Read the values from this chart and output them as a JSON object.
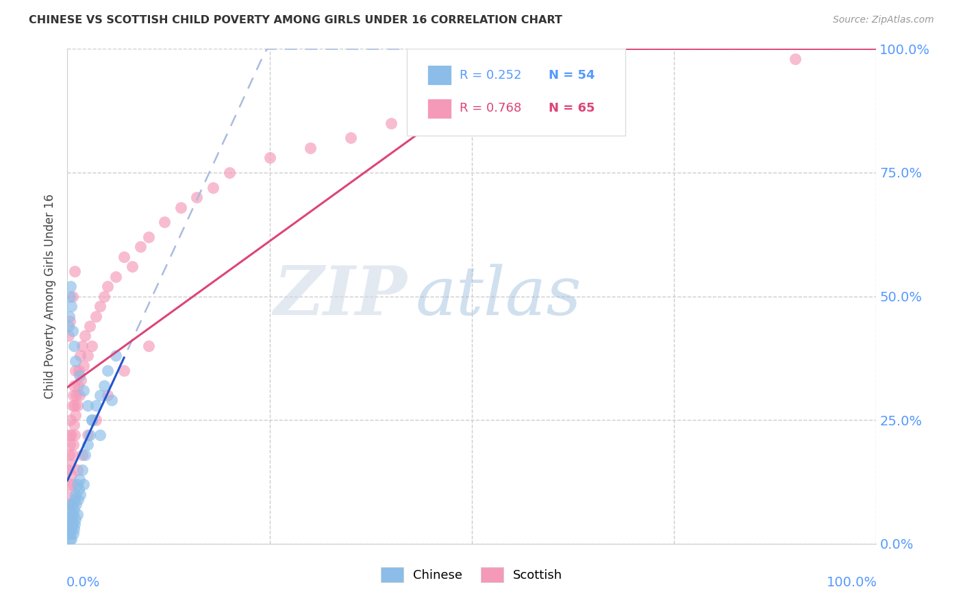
{
  "title": "CHINESE VS SCOTTISH CHILD POVERTY AMONG GIRLS UNDER 16 CORRELATION CHART",
  "source": "Source: ZipAtlas.com",
  "ylabel": "Child Poverty Among Girls Under 16",
  "ytick_values": [
    0.0,
    0.25,
    0.5,
    0.75,
    1.0
  ],
  "ytick_labels": [
    "0.0%",
    "25.0%",
    "50.0%",
    "75.0%",
    "100.0%"
  ],
  "chinese_R": 0.252,
  "chinese_N": 54,
  "scottish_R": 0.768,
  "scottish_N": 65,
  "chinese_color": "#8bbde8",
  "scottish_color": "#f599b8",
  "chinese_line_color": "#2255cc",
  "scottish_line_color": "#dd4477",
  "chinese_dash_color": "#aabbdd",
  "watermark_zip": "#c8d8e8",
  "watermark_atlas": "#aaccee",
  "chinese_x": [
    0.001,
    0.002,
    0.002,
    0.003,
    0.003,
    0.003,
    0.004,
    0.004,
    0.004,
    0.005,
    0.005,
    0.005,
    0.006,
    0.006,
    0.007,
    0.007,
    0.008,
    0.008,
    0.009,
    0.009,
    0.01,
    0.01,
    0.011,
    0.012,
    0.012,
    0.013,
    0.014,
    0.015,
    0.016,
    0.018,
    0.02,
    0.022,
    0.025,
    0.028,
    0.03,
    0.035,
    0.04,
    0.045,
    0.05,
    0.06,
    0.001,
    0.002,
    0.003,
    0.004,
    0.005,
    0.006,
    0.008,
    0.01,
    0.015,
    0.02,
    0.025,
    0.03,
    0.04,
    0.055
  ],
  "chinese_y": [
    0.02,
    0.03,
    0.05,
    0.01,
    0.04,
    0.07,
    0.02,
    0.05,
    0.08,
    0.01,
    0.03,
    0.06,
    0.04,
    0.08,
    0.02,
    0.06,
    0.03,
    0.07,
    0.04,
    0.09,
    0.05,
    0.1,
    0.08,
    0.06,
    0.12,
    0.09,
    0.11,
    0.13,
    0.1,
    0.15,
    0.12,
    0.18,
    0.2,
    0.22,
    0.25,
    0.28,
    0.3,
    0.32,
    0.35,
    0.38,
    0.44,
    0.46,
    0.5,
    0.52,
    0.48,
    0.43,
    0.4,
    0.37,
    0.34,
    0.31,
    0.28,
    0.25,
    0.22,
    0.29
  ],
  "scottish_x": [
    0.001,
    0.002,
    0.002,
    0.003,
    0.003,
    0.004,
    0.004,
    0.005,
    0.005,
    0.006,
    0.006,
    0.007,
    0.007,
    0.008,
    0.008,
    0.009,
    0.009,
    0.01,
    0.01,
    0.011,
    0.012,
    0.013,
    0.014,
    0.015,
    0.016,
    0.017,
    0.018,
    0.02,
    0.022,
    0.025,
    0.028,
    0.03,
    0.035,
    0.04,
    0.045,
    0.05,
    0.06,
    0.07,
    0.08,
    0.09,
    0.1,
    0.12,
    0.14,
    0.16,
    0.18,
    0.2,
    0.25,
    0.3,
    0.35,
    0.4,
    0.002,
    0.004,
    0.007,
    0.012,
    0.018,
    0.025,
    0.035,
    0.05,
    0.07,
    0.1,
    0.001,
    0.003,
    0.006,
    0.009,
    0.9
  ],
  "scottish_y": [
    0.15,
    0.18,
    0.22,
    0.12,
    0.2,
    0.16,
    0.25,
    0.14,
    0.22,
    0.18,
    0.28,
    0.2,
    0.3,
    0.24,
    0.32,
    0.22,
    0.28,
    0.26,
    0.35,
    0.3,
    0.28,
    0.32,
    0.35,
    0.3,
    0.38,
    0.33,
    0.4,
    0.36,
    0.42,
    0.38,
    0.44,
    0.4,
    0.46,
    0.48,
    0.5,
    0.52,
    0.54,
    0.58,
    0.56,
    0.6,
    0.62,
    0.65,
    0.68,
    0.7,
    0.72,
    0.75,
    0.78,
    0.8,
    0.82,
    0.85,
    0.08,
    0.1,
    0.12,
    0.15,
    0.18,
    0.22,
    0.25,
    0.3,
    0.35,
    0.4,
    0.42,
    0.45,
    0.5,
    0.55,
    0.98
  ]
}
